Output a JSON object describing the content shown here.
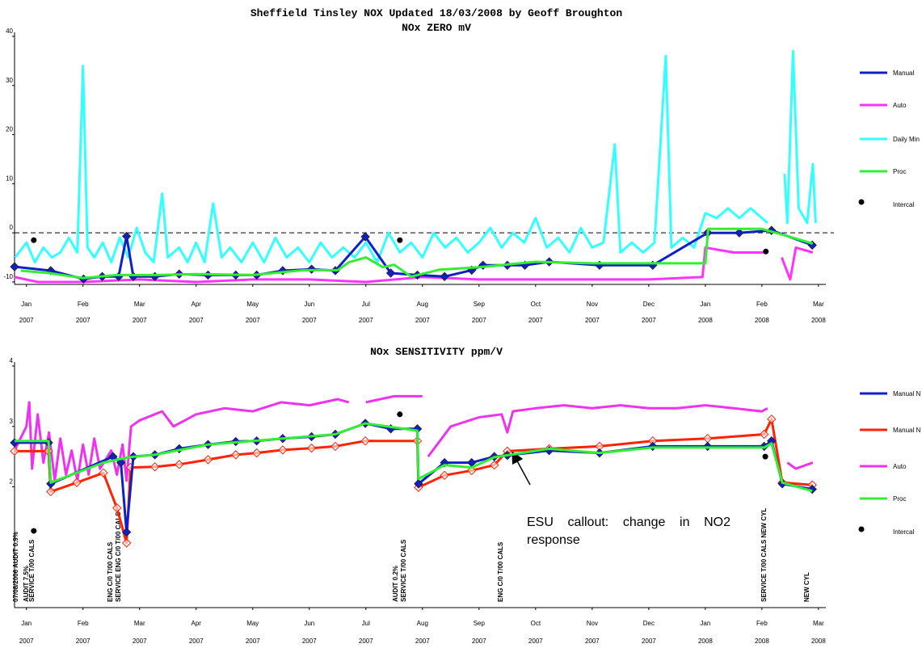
{
  "title": "Sheffield Tinsley NOX Updated 18/03/2008 by Geoff Broughton",
  "chart_data": [
    {
      "type": "line",
      "title": "NOx ZERO mV",
      "xlim": [
        -0.21,
        14.13
      ],
      "ylim": [
        -10.5,
        40
      ],
      "yticks": [
        -10,
        0,
        10,
        20,
        30,
        40
      ],
      "reference_line": 0,
      "xticks": [
        {
          "value": 0,
          "label": "Jan"
        },
        {
          "value": 1,
          "label": "Feb"
        },
        {
          "value": 2,
          "label": "Mar"
        },
        {
          "value": 3,
          "label": "Apr"
        },
        {
          "value": 4,
          "label": "May"
        },
        {
          "value": 5,
          "label": "Jun"
        },
        {
          "value": 6,
          "label": "Jul"
        },
        {
          "value": 7,
          "label": "Aug"
        },
        {
          "value": 8,
          "label": "Sep"
        },
        {
          "value": 9,
          "label": "Oct"
        },
        {
          "value": 10,
          "label": "Nov"
        },
        {
          "value": 11,
          "label": "Dec"
        },
        {
          "value": 12,
          "label": "Jan"
        },
        {
          "value": 13,
          "label": "Feb"
        },
        {
          "value": 14,
          "label": "Mar"
        }
      ],
      "xtick_years": [
        "2007",
        "2007",
        "2007",
        "2007",
        "2007",
        "2007",
        "2007",
        "2007",
        "2007",
        "2007",
        "2007",
        "2007",
        "2008",
        "2008",
        "2008"
      ],
      "series": [
        {
          "name": "Manual",
          "color": "#1020c8",
          "marker": "diamond-filled",
          "x": [
            -0.21,
            0.43,
            1.01,
            1.34,
            1.63,
            1.77,
            1.89,
            2.27,
            2.7,
            3.21,
            3.7,
            4.07,
            4.53,
            5.04,
            5.46,
            5.99,
            6.44,
            6.91,
            7.39,
            7.87,
            8.07,
            8.5,
            8.81,
            9.24,
            10.13,
            11.07,
            12.04,
            12.6,
            13.17,
            13.89
          ],
          "values": [
            -6.9,
            -7.7,
            -9.4,
            -8.9,
            -8.9,
            -0.7,
            -8.9,
            -8.9,
            -8.4,
            -8.6,
            -8.6,
            -8.6,
            -7.7,
            -7.4,
            -7.7,
            -0.8,
            -8.2,
            -8.6,
            -8.9,
            -7.6,
            -6.6,
            -6.6,
            -6.6,
            -5.9,
            -6.6,
            -6.6,
            0,
            0,
            0.5,
            -2.5
          ]
        },
        {
          "name": "Auto",
          "color": "#ff33ff",
          "x": [
            -0.21,
            0.2,
            1,
            2,
            3,
            4,
            5,
            6,
            7,
            8,
            9,
            10,
            11,
            11.95,
            12.0,
            12.5,
            13.1,
            13.2,
            13.35,
            13.5,
            13.6,
            13.9
          ],
          "values": [
            -9,
            -10,
            -10,
            -9.5,
            -10,
            -9.5,
            -9.5,
            -10,
            -9,
            -9.5,
            -9.5,
            -9.5,
            -9.5,
            -9,
            -3,
            -4,
            -4,
            null,
            -5,
            -9.5,
            -3,
            -4
          ]
        },
        {
          "name": "Daily Min",
          "color": "#33ffff",
          "x": [
            -0.2,
            0,
            0.15,
            0.3,
            0.45,
            0.6,
            0.75,
            0.9,
            1.0,
            1.08,
            1.2,
            1.35,
            1.5,
            1.65,
            1.8,
            1.95,
            2.1,
            2.25,
            2.4,
            2.5,
            2.7,
            2.85,
            3.0,
            3.15,
            3.3,
            3.45,
            3.6,
            3.8,
            4.0,
            4.2,
            4.4,
            4.6,
            4.8,
            5.0,
            5.2,
            5.4,
            5.6,
            5.8,
            6.0,
            6.2,
            6.4,
            6.6,
            6.8,
            7.0,
            7.2,
            7.4,
            7.6,
            7.8,
            8.0,
            8.2,
            8.4,
            8.6,
            8.8,
            9.0,
            9.2,
            9.4,
            9.6,
            9.8,
            10.0,
            10.2,
            10.4,
            10.5,
            10.7,
            10.9,
            11.1,
            11.3,
            11.4,
            11.6,
            11.8,
            12.0,
            12.2,
            12.4,
            12.6,
            12.8,
            13.0,
            13.1,
            13.2,
            13.4,
            13.45,
            13.55,
            13.65,
            13.8,
            13.9,
            13.95
          ],
          "values": [
            -5,
            -2,
            -6,
            -3,
            -5,
            -4,
            -1,
            -4,
            34,
            -3,
            -5,
            -2,
            -6,
            -1,
            -5,
            1,
            -4,
            -6,
            8,
            -5,
            -3,
            -6,
            -2,
            -6,
            6,
            -5,
            -3,
            -6,
            -2,
            -6,
            -1,
            -5,
            -3,
            -6,
            -2,
            -5,
            -3,
            -5,
            -2,
            -6,
            0,
            -4,
            -2,
            -5,
            0,
            -3,
            -1,
            -4,
            -2,
            1,
            -3,
            0,
            -2,
            3,
            -3,
            -1,
            -4,
            1,
            -3,
            -2,
            18,
            -4,
            -2,
            -4,
            -2,
            36,
            -3,
            -1,
            -3,
            4,
            3,
            5,
            3,
            5,
            3,
            2,
            null,
            12,
            2,
            37,
            5,
            2,
            14,
            2
          ]
        },
        {
          "name": "Proc",
          "color": "#33ee33",
          "x": [
            -0.1,
            0.4,
            1.0,
            1.6,
            2.3,
            3.0,
            4.0,
            4.9,
            5.5,
            5.7,
            6.0,
            6.3,
            6.5,
            6.8,
            7.3,
            8.0,
            9.0,
            10.0,
            11.0,
            12.0,
            12.05,
            13.0,
            13.4,
            13.9
          ],
          "values": [
            -7.7,
            -8.2,
            -9.2,
            -8.6,
            -8.6,
            -8.4,
            -8.6,
            -7.6,
            -7.6,
            -6,
            -5,
            -7,
            -6.5,
            -8.9,
            -7.5,
            -7,
            -5.9,
            -6.2,
            -6.2,
            -6.2,
            0.8,
            0.8,
            -0.5,
            -2.2
          ]
        },
        {
          "name": "Intercal",
          "color": "#000000",
          "style": "scatter",
          "x": [
            0.13,
            6.6,
            13.07
          ],
          "values": [
            -1.5,
            -1.5,
            -3.8
          ]
        }
      ]
    },
    {
      "type": "line",
      "title": "NOx SENSITIVITY ppm/V",
      "xlim": [
        -0.21,
        14.13
      ],
      "ylim": [
        0,
        4
      ],
      "yticks": [
        2,
        3,
        4
      ],
      "xticks": [
        {
          "value": 0,
          "label": "Jan"
        },
        {
          "value": 1,
          "label": "Feb"
        },
        {
          "value": 2,
          "label": "Mar"
        },
        {
          "value": 3,
          "label": "Apr"
        },
        {
          "value": 4,
          "label": "May"
        },
        {
          "value": 5,
          "label": "Jun"
        },
        {
          "value": 6,
          "label": "Jul"
        },
        {
          "value": 7,
          "label": "Aug"
        },
        {
          "value": 8,
          "label": "Sep"
        },
        {
          "value": 9,
          "label": "Oct"
        },
        {
          "value": 10,
          "label": "Nov"
        },
        {
          "value": 11,
          "label": "Dec"
        },
        {
          "value": 12,
          "label": "Jan"
        },
        {
          "value": 13,
          "label": "Feb"
        },
        {
          "value": 14,
          "label": "Mar"
        }
      ],
      "xtick_years": [
        "2007",
        "2007",
        "2007",
        "2007",
        "2007",
        "2007",
        "2007",
        "2007",
        "2007",
        "2007",
        "2007",
        "2007",
        "2008",
        "2008",
        "2008"
      ],
      "annotations": [
        "07/08/2006 AUDIT 0.9%",
        "AUDIT 7.5%",
        "SERVICE T/00 CALS",
        "ENG C/0 T/00 CALS",
        "SERVICE ENG C/0 T/00 CALS",
        "AUDIT 0.2%",
        "SERVICE T/00 CALS",
        "ENG C/0 T/00 CALS",
        "SERVICE T/00 CALS NEW CYL",
        "NEW CYL"
      ],
      "callout": "ESU callout: change in NO2 response",
      "series": [
        {
          "name": "Manual N",
          "color": "#1020c8",
          "marker": "diamond-filled",
          "x": [
            -0.21,
            0.39,
            0.43,
            1.53,
            1.67,
            1.77,
            1.89,
            2.27,
            2.7,
            3.21,
            3.7,
            4.07,
            4.53,
            5.04,
            5.46,
            5.99,
            6.44,
            6.91,
            6.93,
            7.39,
            7.87,
            8.27,
            8.5,
            9.24,
            10.13,
            11.07,
            12.04,
            13.04,
            13.17,
            13.36,
            13.89
          ],
          "values": [
            2.73,
            2.73,
            2.05,
            2.5,
            2.4,
            1.25,
            2.5,
            2.53,
            2.63,
            2.7,
            2.75,
            2.76,
            2.8,
            2.83,
            2.87,
            3.05,
            2.96,
            2.96,
            2.05,
            2.4,
            2.4,
            2.5,
            2.52,
            2.6,
            2.56,
            2.67,
            2.67,
            2.67,
            2.76,
            2.05,
            1.96
          ]
        },
        {
          "name": "Manual N",
          "color": "#ff2200",
          "marker": "diamond-open",
          "x": [
            -0.21,
            0.39,
            0.43,
            0.89,
            1.36,
            1.6,
            1.77,
            1.84,
            2.27,
            2.7,
            3.21,
            3.7,
            4.07,
            4.53,
            5.04,
            5.46,
            5.99,
            6.91,
            6.93,
            7.39,
            7.87,
            8.27,
            8.5,
            9.24,
            10.13,
            11.07,
            12.04,
            13.04,
            13.17,
            13.36,
            13.89
          ],
          "values": [
            2.59,
            2.59,
            1.92,
            2.07,
            2.23,
            1.65,
            1.07,
            2.32,
            2.33,
            2.37,
            2.45,
            2.53,
            2.56,
            2.61,
            2.64,
            2.67,
            2.76,
            2.76,
            1.99,
            2.19,
            2.27,
            2.36,
            2.59,
            2.63,
            2.67,
            2.76,
            2.8,
            2.87,
            3.12,
            2.07,
            2.03
          ]
        },
        {
          "name": "Auto",
          "color": "#ee33ee",
          "x": [
            -0.21,
            0,
            0.05,
            0.1,
            0.2,
            0.3,
            0.4,
            0.5,
            0.6,
            0.7,
            0.8,
            0.9,
            1.0,
            1.1,
            1.2,
            1.3,
            1.5,
            1.6,
            1.7,
            1.77,
            1.85,
            2.0,
            2.4,
            2.6,
            3.0,
            3.5,
            4.0,
            4.5,
            5.0,
            5.5,
            5.7,
            5.8,
            6.0,
            6.5,
            7.0,
            7.05,
            7.1,
            7.5,
            8.0,
            8.4,
            8.5,
            8.6,
            9.0,
            9.5,
            10.0,
            10.5,
            11.0,
            11.5,
            12.0,
            12.5,
            13.0,
            13.1,
            13.2,
            13.45,
            13.6,
            13.9
          ],
          "values": [
            2.6,
            3.0,
            3.4,
            2.3,
            3.2,
            2.4,
            2.9,
            2.1,
            2.8,
            2.2,
            2.6,
            2.1,
            2.7,
            2.2,
            2.8,
            2.3,
            2.6,
            2.2,
            2.7,
            2.1,
            3.0,
            3.1,
            3.25,
            3.0,
            3.2,
            3.3,
            3.25,
            3.4,
            3.35,
            3.45,
            3.4,
            null,
            3.4,
            3.5,
            3.5,
            null,
            2.5,
            3.0,
            3.15,
            3.2,
            2.9,
            3.25,
            3.3,
            3.35,
            3.3,
            3.35,
            3.3,
            3.3,
            3.35,
            3.3,
            3.25,
            3.3,
            null,
            2.4,
            2.3,
            2.4
          ]
        },
        {
          "name": "Proc",
          "color": "#33ee33",
          "x": [
            -0.21,
            0.39,
            0.43,
            1.36,
            1.81,
            2.27,
            3.21,
            4.53,
            5.46,
            5.99,
            6.91,
            6.93,
            7.39,
            7.87,
            8.27,
            9.24,
            10.13,
            11.07,
            13.04,
            13.17,
            13.36,
            13.89
          ],
          "values": [
            2.76,
            2.76,
            2.07,
            2.4,
            2.49,
            2.53,
            2.7,
            2.8,
            2.87,
            3.05,
            2.93,
            2.13,
            2.36,
            2.32,
            2.49,
            2.63,
            2.56,
            2.65,
            2.65,
            2.72,
            2.07,
            1.93
          ]
        },
        {
          "name": "Intercal",
          "color": "#000000",
          "style": "scatter",
          "x": [
            0.13,
            6.6,
            13.06
          ],
          "values": [
            1.27,
            3.2,
            2.5
          ]
        }
      ]
    }
  ]
}
